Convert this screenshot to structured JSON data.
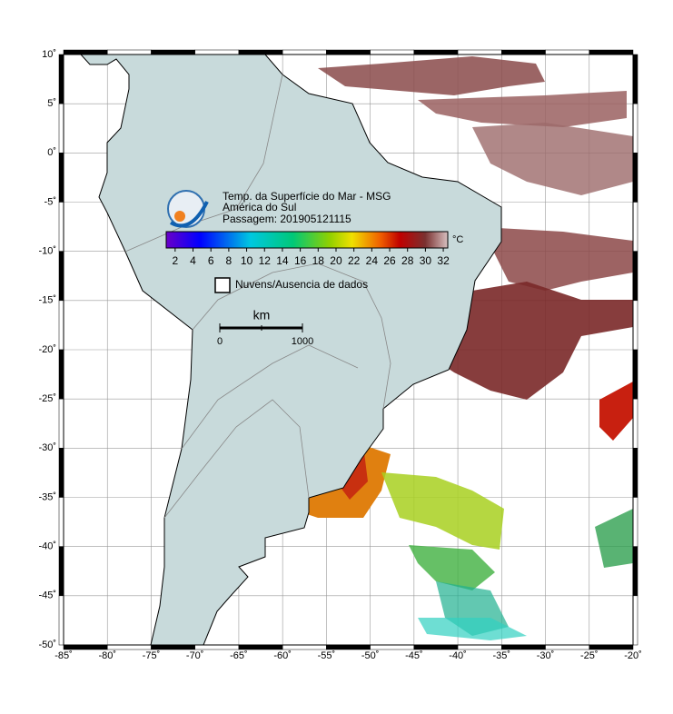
{
  "map": {
    "title": "Temp. da Superfície do Mar - MSG",
    "region": "América do Sul",
    "pass": "Passagem: 201905121115",
    "colorbar": {
      "unit": "°C",
      "lim": [
        1,
        32.5
      ],
      "ticks": [
        2,
        4,
        6,
        8,
        10,
        12,
        14,
        16,
        18,
        20,
        22,
        24,
        26,
        28,
        30,
        32
      ]
    },
    "legend": "Nuvens/Ausencia de dados",
    "scale": {
      "unit": "km",
      "labels": [
        "0",
        "1000"
      ]
    },
    "xlim": [
      -85,
      -20
    ],
    "ylim": [
      -50,
      10
    ],
    "xticks": [
      {
        "value": -85,
        "label": "-85˚"
      },
      {
        "value": -80,
        "label": "-80˚"
      },
      {
        "value": -75,
        "label": "-75˚"
      },
      {
        "value": -70,
        "label": "-70˚"
      },
      {
        "value": -65,
        "label": "-65˚"
      },
      {
        "value": -60,
        "label": "-60˚"
      },
      {
        "value": -55,
        "label": "-55˚"
      },
      {
        "value": -50,
        "label": "-50˚"
      },
      {
        "value": -45,
        "label": "-45˚"
      },
      {
        "value": -40,
        "label": "-40˚"
      },
      {
        "value": -35,
        "label": "-35˚"
      },
      {
        "value": -30,
        "label": "-30˚"
      },
      {
        "value": -25,
        "label": "-25˚"
      },
      {
        "value": -20,
        "label": "-20˚"
      }
    ],
    "yticks": [
      {
        "value": 10,
        "label": "10˚"
      },
      {
        "value": 5,
        "label": "5˚"
      },
      {
        "value": 0,
        "label": "0˚"
      },
      {
        "value": -5,
        "label": "-5˚"
      },
      {
        "value": -10,
        "label": "-10˚"
      },
      {
        "value": -15,
        "label": "-15˚"
      },
      {
        "value": -20,
        "label": "-20˚"
      },
      {
        "value": -25,
        "label": "-25˚"
      },
      {
        "value": -30,
        "label": "-30˚"
      },
      {
        "value": -35,
        "label": "-35˚"
      },
      {
        "value": -40,
        "label": "-40˚"
      },
      {
        "value": -45,
        "label": "-45˚"
      },
      {
        "value": -50,
        "label": "-50˚"
      }
    ]
  }
}
